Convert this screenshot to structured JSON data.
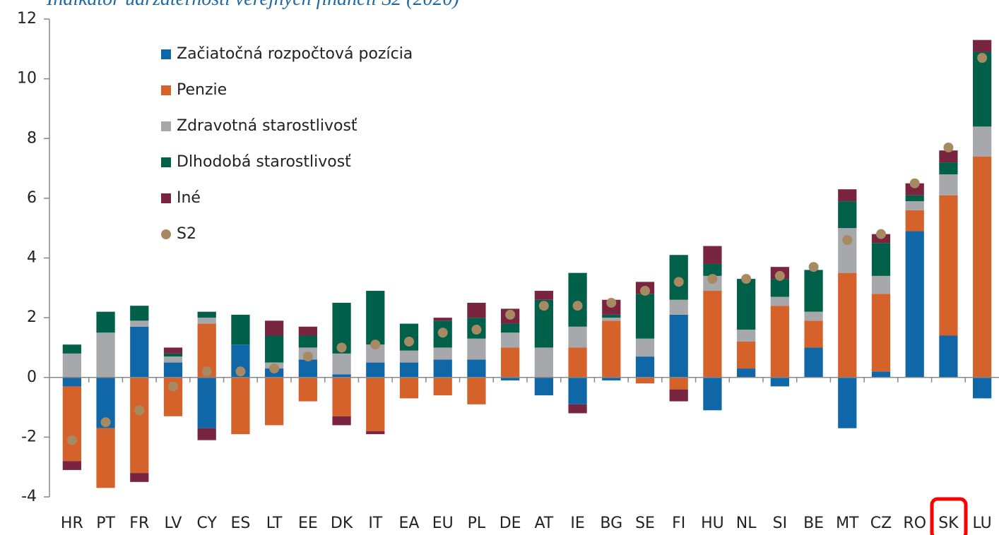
{
  "chart_data": {
    "type": "stacked_bar",
    "title": "Indikátor udržateľnosti verejných financií S2 (2020)",
    "categories": [
      "HR",
      "PT",
      "FR",
      "LV",
      "CY",
      "ES",
      "LT",
      "EE",
      "DK",
      "IT",
      "EA",
      "EU",
      "PL",
      "DE",
      "AT",
      "IE",
      "BG",
      "SE",
      "FI",
      "HU",
      "NL",
      "SI",
      "BE",
      "MT",
      "CZ",
      "RO",
      "SK",
      "LU"
    ],
    "series": [
      {
        "name": "Začiatočná rozpočtová pozícia",
        "color": "#0f67a8",
        "values": [
          -0.3,
          -1.7,
          1.7,
          0.5,
          -1.7,
          1.1,
          0.3,
          0.6,
          0.1,
          0.5,
          0.5,
          0.6,
          0.6,
          -0.1,
          -0.6,
          -0.9,
          -0.1,
          0.7,
          2.1,
          -1.1,
          0.3,
          -0.3,
          1.0,
          -1.7,
          0.2,
          4.9,
          1.4,
          -0.7
        ]
      },
      {
        "name": "Penzie",
        "color": "#d4622a",
        "values": [
          -2.5,
          -2.0,
          -3.2,
          -1.3,
          1.8,
          -1.9,
          -1.6,
          -0.8,
          -1.3,
          -1.8,
          -0.7,
          -0.6,
          -0.9,
          1.0,
          0,
          1.0,
          1.9,
          -0.2,
          -0.4,
          2.9,
          0.9,
          2.4,
          0.9,
          3.5,
          2.6,
          0.7,
          4.7,
          7.4
        ]
      },
      {
        "name": "Zdravotná starostlivosť",
        "color": "#a6a8ab",
        "values": [
          0.8,
          1.5,
          0.2,
          0.2,
          0.2,
          0,
          0.2,
          0.4,
          0.7,
          0.6,
          0.4,
          0.4,
          0.7,
          0.5,
          1.0,
          0.7,
          0.1,
          0.6,
          0.5,
          0.5,
          0.4,
          0.3,
          0.3,
          1.5,
          0.6,
          0.3,
          0.7,
          1.0
        ]
      },
      {
        "name": "Dlhodobá starostlivosť",
        "color": "#00604a",
        "values": [
          0.3,
          0.7,
          0.5,
          0.1,
          0.2,
          1.0,
          0.9,
          0.4,
          1.7,
          1.8,
          0.9,
          0.9,
          0.7,
          0.3,
          1.6,
          1.8,
          0.1,
          1.5,
          1.5,
          0.4,
          1.7,
          0.6,
          1.4,
          0.9,
          1.1,
          0.2,
          0.4,
          2.5
        ]
      },
      {
        "name": "Iné",
        "color": "#7a2540",
        "values": [
          -0.3,
          0,
          -0.3,
          0.2,
          -0.4,
          0,
          0.5,
          0.3,
          -0.3,
          -0.1,
          0,
          0.1,
          0.5,
          0.5,
          0.3,
          -0.3,
          0.5,
          0.4,
          -0.4,
          0.6,
          0,
          0.4,
          0,
          0.4,
          0.3,
          0.4,
          0.4,
          0.4
        ]
      }
    ],
    "markers": {
      "name": "S2",
      "color": "#a88a62",
      "values": [
        -2.1,
        -1.5,
        -1.1,
        -0.3,
        0.2,
        0.2,
        0.3,
        0.7,
        1.0,
        1.1,
        1.2,
        1.5,
        1.6,
        2.1,
        2.4,
        2.4,
        2.5,
        2.9,
        3.2,
        3.3,
        3.3,
        3.4,
        3.7,
        4.6,
        4.8,
        6.5,
        7.7,
        10.7
      ]
    },
    "ylim": [
      -4,
      12
    ],
    "yticks": [
      -4,
      -2,
      0,
      2,
      4,
      6,
      8,
      10,
      12
    ],
    "grid": false
  }
}
